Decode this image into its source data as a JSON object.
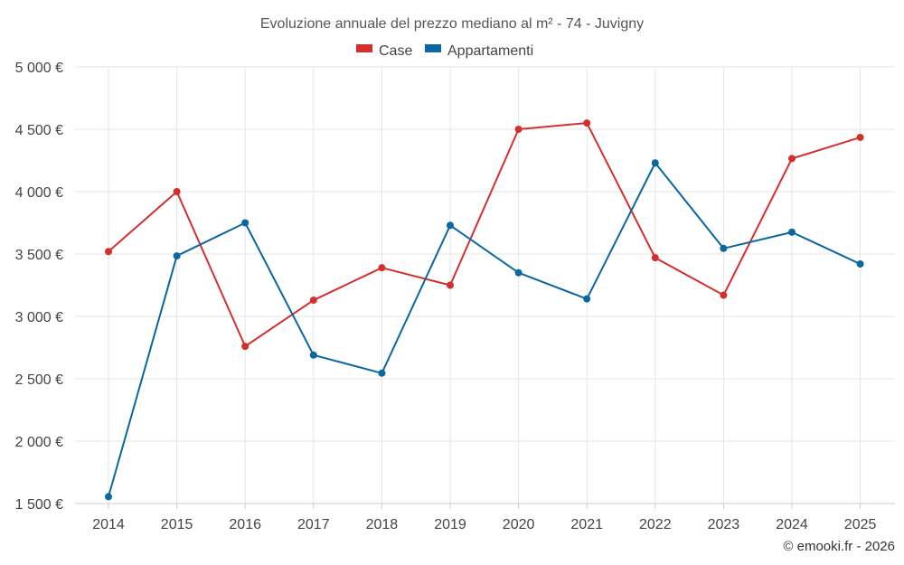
{
  "chart_data": {
    "type": "line",
    "title": "Evoluzione annuale del prezzo mediano al m² - 74 - Juvigny",
    "categories": [
      "2014",
      "2015",
      "2016",
      "2017",
      "2018",
      "2019",
      "2020",
      "2021",
      "2022",
      "2023",
      "2024",
      "2025"
    ],
    "series": [
      {
        "name": "Case",
        "color": "#d32f2f",
        "values": [
          3520,
          4000,
          2760,
          3130,
          3390,
          3250,
          4500,
          4550,
          3470,
          3170,
          4265,
          4435
        ]
      },
      {
        "name": "Appartamenti",
        "color": "#0a67a0",
        "values": [
          1555,
          3485,
          3750,
          2690,
          2545,
          3730,
          3350,
          3140,
          4230,
          3545,
          3675,
          3420
        ]
      }
    ],
    "yticks": [
      "1 500 €",
      "2 000 €",
      "2 500 €",
      "3 000 €",
      "3 500 €",
      "4 000 €",
      "4 500 €",
      "5 000 €"
    ],
    "ylim": [
      1500,
      5000
    ],
    "ytick_step": 500,
    "xlabel": "",
    "ylabel": "",
    "legend": "top-center",
    "grid": true,
    "credit": "© emooki.fr - 2026"
  }
}
